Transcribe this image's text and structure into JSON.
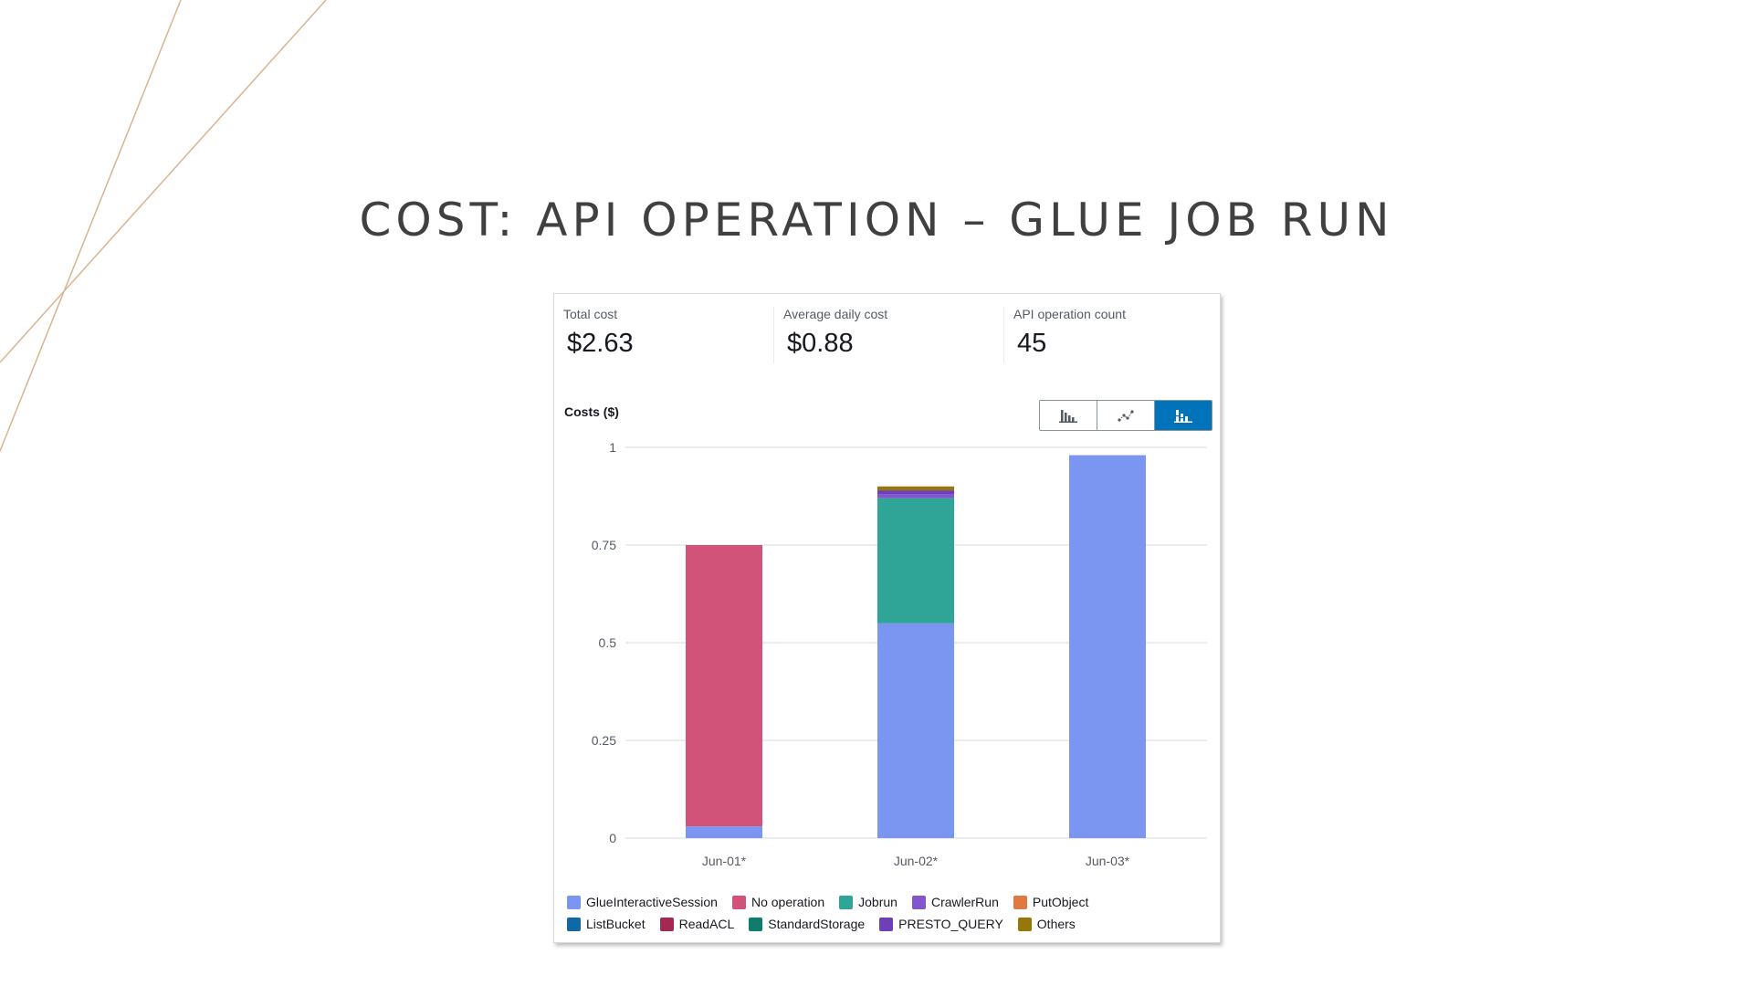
{
  "slide": {
    "title": "COST: API OPERATION – GLUE JOB RUN"
  },
  "metrics": [
    {
      "label": "Total cost",
      "value": "$2.63"
    },
    {
      "label": "Average daily cost",
      "value": "$0.88"
    },
    {
      "label": "API operation count",
      "value": "45"
    }
  ],
  "chart_controls": {
    "buttons": [
      {
        "icon": "bar-chart-icon",
        "active": false
      },
      {
        "icon": "line-chart-icon",
        "active": false
      },
      {
        "icon": "stacked-bar-chart-icon",
        "active": true
      }
    ]
  },
  "colors": {
    "accent": "#0073bb",
    "decor_line": "#d9b48f",
    "title": "#404040"
  },
  "chart_data": {
    "type": "bar",
    "stacked": true,
    "ylabel": "Costs ($)",
    "ylim": [
      0,
      1
    ],
    "yticks": [
      "0",
      "0.25",
      "0.5",
      "0.75",
      "1"
    ],
    "categories": [
      "Jun-01*",
      "Jun-02*",
      "Jun-03*"
    ],
    "grid": true,
    "legend_position": "bottom",
    "series": [
      {
        "name": "GlueInteractiveSession",
        "color": "#7b96f0",
        "values": [
          0.03,
          0.55,
          0.98
        ]
      },
      {
        "name": "No operation",
        "color": "#d1537a",
        "values": [
          0.72,
          0,
          0
        ]
      },
      {
        "name": "Jobrun",
        "color": "#2ea597",
        "values": [
          0,
          0.32,
          0
        ]
      },
      {
        "name": "CrawlerRun",
        "color": "#8456ce",
        "values": [
          0,
          0.01,
          0
        ]
      },
      {
        "name": "PutObject",
        "color": "#e07941",
        "values": [
          0,
          0,
          0
        ]
      },
      {
        "name": "ListBucket",
        "color": "#0f68a8",
        "values": [
          0,
          0,
          0
        ]
      },
      {
        "name": "ReadACL",
        "color": "#a32952",
        "values": [
          0,
          0,
          0
        ]
      },
      {
        "name": "StandardStorage",
        "color": "#0f7d6e",
        "values": [
          0,
          0,
          0
        ]
      },
      {
        "name": "PRESTO_QUERY",
        "color": "#6d3fb8",
        "values": [
          0,
          0.01,
          0
        ]
      },
      {
        "name": "Others",
        "color": "#96770a",
        "values": [
          0,
          0.01,
          0
        ]
      }
    ]
  }
}
